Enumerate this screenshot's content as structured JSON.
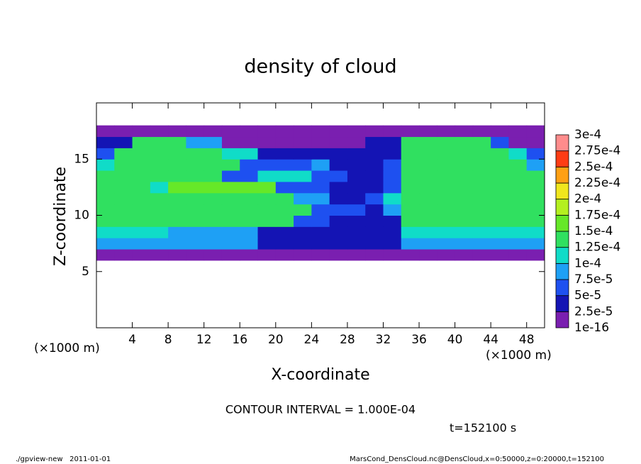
{
  "chart_data": {
    "type": "contour",
    "title": "density of cloud",
    "xlabel": "X-coordinate",
    "ylabel": "Z-coordinate",
    "xunit": "(×1000 m)",
    "contour_interval": "CONTOUR INTERVAL = 1.000E-04",
    "time_label": "t=152100 s",
    "footer_left": "./gpview-new   2011-01-01",
    "footer_right": "MarsCond_DensCloud.nc@DensCloud,x=0:50000,z=0:20000,t=152100",
    "xlim": [
      0,
      50
    ],
    "ylim": [
      0,
      20
    ],
    "xticks": [
      4,
      8,
      12,
      16,
      20,
      24,
      28,
      32,
      36,
      40,
      44,
      48
    ],
    "yticks": [
      5,
      10,
      15
    ],
    "x": [
      1,
      3,
      5,
      7,
      9,
      11,
      13,
      15,
      17,
      19,
      21,
      23,
      25,
      27,
      29,
      31,
      33,
      35,
      37,
      39,
      41,
      43,
      45,
      47,
      49
    ],
    "z": [
      6.5,
      7.5,
      8.5,
      9.5,
      10.5,
      11.5,
      12.5,
      13.5,
      14.5,
      15.5,
      16.5,
      17.5
    ],
    "values": [
      [
        1.5e-05,
        1.5e-05,
        1.5e-05,
        1.5e-05,
        1.5e-05,
        1.5e-05,
        1.5e-05,
        1.5e-05,
        1.5e-05,
        1.5e-05,
        1.5e-05,
        1.5e-05,
        1.5e-05,
        1.5e-05,
        1.5e-05,
        1.5e-05,
        1.5e-05,
        1.5e-05,
        1.5e-05,
        1.5e-05,
        1.5e-05,
        1.5e-05,
        1.5e-05,
        1.5e-05,
        1.5e-05
      ],
      [
        8e-05,
        8e-05,
        8e-05,
        8e-05,
        8e-05,
        8e-05,
        8e-05,
        8e-05,
        8e-05,
        4e-05,
        4e-05,
        4e-05,
        4e-05,
        3e-05,
        3e-05,
        3e-05,
        3e-05,
        9e-05,
        9e-05,
        9e-05,
        9e-05,
        9e-05,
        9e-05,
        9e-05,
        9e-05
      ],
      [
        0.00011,
        0.00011,
        0.00011,
        0.00011,
        9e-05,
        9e-05,
        9e-05,
        9e-05,
        9e-05,
        4e-05,
        4e-05,
        4e-05,
        4e-05,
        4e-05,
        4e-05,
        4e-05,
        4e-05,
        0.00012,
        0.00012,
        0.00012,
        0.00012,
        0.00012,
        0.00012,
        0.00012,
        0.00012
      ],
      [
        0.000135,
        0.000135,
        0.000135,
        0.000135,
        0.00013,
        0.00013,
        0.00013,
        0.00013,
        0.00013,
        0.00013,
        0.00013,
        6e-05,
        6e-05,
        4e-05,
        4e-05,
        4e-05,
        4e-05,
        0.00014,
        0.00014,
        0.00014,
        0.00014,
        0.00014,
        0.00014,
        0.00014,
        0.00014
      ],
      [
        0.00014,
        0.00014,
        0.00014,
        0.00014,
        0.00014,
        0.00014,
        0.00014,
        0.00014,
        0.00014,
        0.00014,
        0.00013,
        0.00013,
        5e-05,
        5e-05,
        5e-05,
        4e-05,
        8e-05,
        0.000145,
        0.000145,
        0.000145,
        0.000145,
        0.000145,
        0.000145,
        0.000145,
        0.000145
      ],
      [
        0.00014,
        0.00014,
        0.00014,
        0.00014,
        0.00014,
        0.00014,
        0.00014,
        0.00014,
        0.00014,
        0.00014,
        0.00014,
        9e-05,
        9e-05,
        4e-05,
        4e-05,
        5e-05,
        0.00011,
        0.000145,
        0.000145,
        0.000145,
        0.000145,
        0.000145,
        0.000145,
        0.000145,
        0.000145
      ],
      [
        0.00014,
        0.00014,
        0.00014,
        0.00011,
        0.00015,
        0.00015,
        0.00015,
        0.00015,
        0.00015,
        0.00015,
        7e-05,
        5e-05,
        5e-05,
        4e-05,
        4e-05,
        4e-05,
        7e-05,
        0.000145,
        0.000145,
        0.000145,
        0.000145,
        0.000145,
        0.000145,
        0.000145,
        0.000145
      ],
      [
        0.00014,
        0.00014,
        0.00014,
        0.00014,
        0.00014,
        0.00014,
        0.00014,
        5e-05,
        5e-05,
        0.00012,
        0.00012,
        0.00012,
        6e-05,
        6e-05,
        3e-05,
        3e-05,
        6e-05,
        0.000145,
        0.000145,
        0.000145,
        0.000145,
        0.000145,
        0.000145,
        0.000145,
        0.000145
      ],
      [
        0.00011,
        0.00014,
        0.00014,
        0.00014,
        0.00014,
        0.00014,
        0.00014,
        0.00014,
        5e-05,
        5e-05,
        6e-05,
        6e-05,
        9e-05,
        4e-05,
        4e-05,
        4e-05,
        5e-05,
        0.00014,
        0.00014,
        0.00014,
        0.00014,
        0.00014,
        0.00014,
        0.00014,
        9e-05
      ],
      [
        6e-05,
        0.00014,
        0.00014,
        0.00014,
        0.00014,
        0.00014,
        0.00014,
        0.00012,
        0.00012,
        4e-05,
        4e-05,
        3e-05,
        3e-05,
        3e-05,
        3e-05,
        3e-05,
        3e-05,
        0.00014,
        0.00014,
        0.00014,
        0.00014,
        0.00014,
        0.00014,
        0.00011,
        6e-05
      ],
      [
        3e-05,
        3e-05,
        0.00013,
        0.00013,
        0.00013,
        8e-05,
        8e-05,
        2e-05,
        2e-05,
        2e-05,
        2e-05,
        2e-05,
        2e-05,
        2e-05,
        2e-05,
        3e-05,
        3e-05,
        0.00013,
        0.00013,
        0.00013,
        0.00013,
        0.00013,
        5e-05,
        2e-05,
        2e-05
      ],
      [
        1.2e-05,
        1.2e-05,
        1.2e-05,
        1.2e-05,
        1.2e-05,
        1.2e-05,
        1.2e-05,
        1.2e-05,
        1.2e-05,
        1.2e-05,
        1.2e-05,
        1.2e-05,
        1.2e-05,
        1.2e-05,
        1.2e-05,
        1.2e-05,
        1.2e-05,
        1.2e-05,
        1.2e-05,
        1.2e-05,
        1.2e-05,
        1.2e-05,
        1.2e-05,
        1.2e-05,
        1.2e-05
      ]
    ],
    "levels": [
      {
        "value": 1e-16,
        "label": "1e-16"
      },
      {
        "value": 2.5e-05,
        "label": "2.5e-5"
      },
      {
        "value": 5e-05,
        "label": "5e-5"
      },
      {
        "value": 7.5e-05,
        "label": "7.5e-5"
      },
      {
        "value": 0.0001,
        "label": "1e-4"
      },
      {
        "value": 0.000125,
        "label": "1.25e-4"
      },
      {
        "value": 0.00015,
        "label": "1.5e-4"
      },
      {
        "value": 0.000175,
        "label": "1.75e-4"
      },
      {
        "value": 0.0002,
        "label": "2e-4"
      },
      {
        "value": 0.000225,
        "label": "2.25e-4"
      },
      {
        "value": 0.00025,
        "label": "2.5e-4"
      },
      {
        "value": 0.000275,
        "label": "2.75e-4"
      },
      {
        "value": 0.0003,
        "label": "3e-4"
      }
    ],
    "colors": [
      "#7a1fb0",
      "#1414b4",
      "#1e50f0",
      "#1ea0f5",
      "#10dcc8",
      "#30e060",
      "#66e828",
      "#b4f020",
      "#f0e61e",
      "#ffa014",
      "#ff3c14",
      "#ff8c8c"
    ]
  }
}
